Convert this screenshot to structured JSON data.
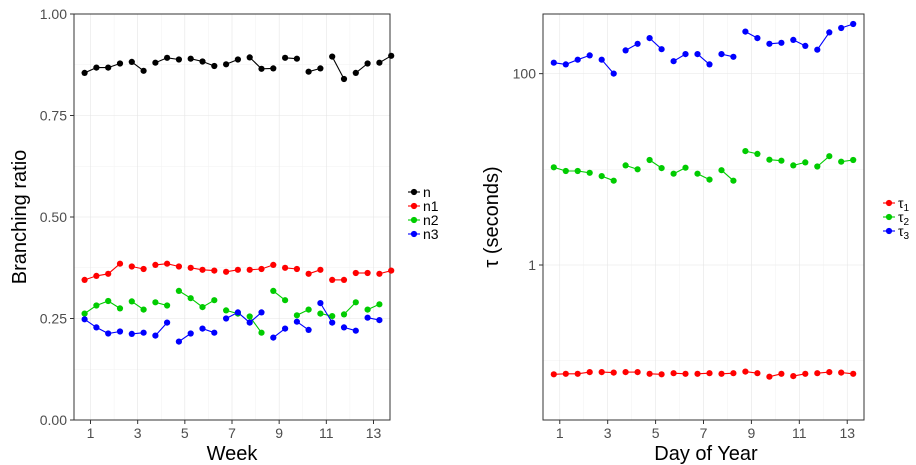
{
  "chart_data": [
    {
      "type": "line",
      "xlabel": "Week",
      "ylabel": "Branching ratio",
      "xlim": [
        0.3,
        13.7
      ],
      "ylim": [
        0,
        1
      ],
      "xticks": [
        1,
        3,
        5,
        7,
        9,
        11,
        13
      ],
      "xtick_labels": [
        "1",
        "3",
        "5",
        "7",
        "9",
        "11",
        "13"
      ],
      "yticks": [
        0,
        0.25,
        0.5,
        0.75,
        1
      ],
      "ytick_labels": [
        "0.00",
        "0.25",
        "0.50",
        "0.75",
        "1.00"
      ],
      "grid": true,
      "legend_position": "right",
      "series": [
        {
          "name": "n",
          "color": "#000000",
          "segments": [
            [
              [
                0.75,
                0.855
              ],
              [
                1.25,
                0.868
              ],
              [
                1.75,
                0.868
              ],
              [
                2.25,
                0.878
              ]
            ],
            [
              [
                2.75,
                0.882
              ],
              [
                3.25,
                0.86
              ]
            ],
            [
              [
                3.75,
                0.88
              ],
              [
                4.25,
                0.892
              ],
              [
                4.75,
                0.888
              ]
            ],
            [
              [
                5.25,
                0.89
              ],
              [
                5.75,
                0.883
              ],
              [
                6.25,
                0.872
              ]
            ],
            [
              [
                6.75,
                0.876
              ],
              [
                7.25,
                0.888
              ]
            ],
            [
              [
                7.75,
                0.893
              ],
              [
                8.25,
                0.865
              ],
              [
                8.75,
                0.866
              ]
            ],
            [
              [
                9.25,
                0.892
              ],
              [
                9.75,
                0.89
              ]
            ],
            [
              [
                10.25,
                0.858
              ],
              [
                10.75,
                0.866
              ]
            ],
            [
              [
                11.25,
                0.895
              ],
              [
                11.75,
                0.84
              ]
            ],
            [
              [
                12.25,
                0.855
              ],
              [
                12.75,
                0.878
              ]
            ],
            [
              [
                13.25,
                0.88
              ],
              [
                13.75,
                0.897
              ]
            ]
          ]
        },
        {
          "name": "n1",
          "color": "#ff0000",
          "segments": [
            [
              [
                0.75,
                0.345
              ],
              [
                1.25,
                0.355
              ],
              [
                1.75,
                0.36
              ],
              [
                2.25,
                0.385
              ]
            ],
            [
              [
                2.75,
                0.378
              ],
              [
                3.25,
                0.372
              ]
            ],
            [
              [
                3.75,
                0.382
              ],
              [
                4.25,
                0.385
              ],
              [
                4.75,
                0.378
              ]
            ],
            [
              [
                5.25,
                0.375
              ],
              [
                5.75,
                0.37
              ],
              [
                6.25,
                0.368
              ]
            ],
            [
              [
                6.75,
                0.365
              ],
              [
                7.25,
                0.37
              ]
            ],
            [
              [
                7.75,
                0.37
              ],
              [
                8.25,
                0.372
              ],
              [
                8.75,
                0.382
              ]
            ],
            [
              [
                9.25,
                0.375
              ],
              [
                9.75,
                0.372
              ]
            ],
            [
              [
                10.25,
                0.36
              ],
              [
                10.75,
                0.37
              ]
            ],
            [
              [
                11.25,
                0.345
              ],
              [
                11.75,
                0.345
              ]
            ],
            [
              [
                12.25,
                0.362
              ],
              [
                12.75,
                0.362
              ]
            ],
            [
              [
                13.25,
                0.36
              ],
              [
                13.75,
                0.368
              ]
            ]
          ]
        },
        {
          "name": "n2",
          "color": "#00cc00",
          "segments": [
            [
              [
                0.75,
                0.262
              ],
              [
                1.25,
                0.282
              ],
              [
                1.75,
                0.293
              ],
              [
                2.25,
                0.275
              ]
            ],
            [
              [
                2.75,
                0.292
              ],
              [
                3.25,
                0.272
              ]
            ],
            [
              [
                3.75,
                0.29
              ],
              [
                4.25,
                0.282
              ]
            ],
            [
              [
                4.75,
                0.318
              ],
              [
                5.25,
                0.3
              ],
              [
                5.75,
                0.278
              ],
              [
                6.25,
                0.295
              ]
            ],
            [
              [
                6.75,
                0.27
              ],
              [
                7.25,
                0.262
              ]
            ],
            [
              [
                7.75,
                0.255
              ],
              [
                8.25,
                0.215
              ]
            ],
            [
              [
                8.75,
                0.318
              ],
              [
                9.25,
                0.295
              ]
            ],
            [
              [
                9.75,
                0.258
              ],
              [
                10.25,
                0.272
              ]
            ],
            [
              [
                10.75,
                0.262
              ],
              [
                11.25,
                0.256
              ]
            ],
            [
              [
                11.75,
                0.26
              ],
              [
                12.25,
                0.29
              ]
            ],
            [
              [
                12.75,
                0.272
              ],
              [
                13.25,
                0.285
              ]
            ]
          ]
        },
        {
          "name": "n3",
          "color": "#0000ff",
          "segments": [
            [
              [
                0.75,
                0.248
              ],
              [
                1.25,
                0.228
              ],
              [
                1.75,
                0.213
              ],
              [
                2.25,
                0.218
              ]
            ],
            [
              [
                2.75,
                0.212
              ],
              [
                3.25,
                0.215
              ]
            ],
            [
              [
                3.75,
                0.208
              ],
              [
                4.25,
                0.24
              ]
            ],
            [
              [
                4.75,
                0.193
              ],
              [
                5.25,
                0.213
              ]
            ],
            [
              [
                5.75,
                0.225
              ],
              [
                6.25,
                0.215
              ]
            ],
            [
              [
                6.75,
                0.25
              ],
              [
                7.25,
                0.265
              ],
              [
                7.75,
                0.24
              ],
              [
                8.25,
                0.265
              ]
            ],
            [
              [
                8.75,
                0.203
              ],
              [
                9.25,
                0.225
              ]
            ],
            [
              [
                9.75,
                0.242
              ],
              [
                10.25,
                0.222
              ]
            ],
            [
              [
                10.75,
                0.288
              ],
              [
                11.25,
                0.24
              ]
            ],
            [
              [
                11.75,
                0.228
              ],
              [
                12.25,
                0.22
              ]
            ],
            [
              [
                12.75,
                0.252
              ],
              [
                13.25,
                0.246
              ]
            ]
          ]
        }
      ]
    },
    {
      "type": "line",
      "xlabel": "Day of Year",
      "ylabel": "τ (seconds)",
      "yscale": "log10",
      "xlim": [
        0.3,
        13.7
      ],
      "ylim": [
        0.024,
        420
      ],
      "xticks": [
        1,
        3,
        5,
        7,
        9,
        11,
        13
      ],
      "xtick_labels": [
        "1",
        "3",
        "5",
        "7",
        "9",
        "11",
        "13"
      ],
      "yticks": [
        1,
        100
      ],
      "ytick_labels": [
        "1",
        "100"
      ],
      "grid": true,
      "legend_position": "right",
      "series": [
        {
          "name": "τ1",
          "label_main": "τ",
          "label_sub": "1",
          "color": "#ff0000",
          "segments": [
            [
              [
                0.75,
                0.072
              ],
              [
                1.25,
                0.073
              ],
              [
                1.75,
                0.073
              ],
              [
                2.25,
                0.076
              ]
            ],
            [
              [
                2.75,
                0.076
              ],
              [
                3.25,
                0.075
              ]
            ],
            [
              [
                3.75,
                0.076
              ],
              [
                4.25,
                0.076
              ]
            ],
            [
              [
                4.75,
                0.073
              ],
              [
                5.25,
                0.072
              ]
            ],
            [
              [
                5.75,
                0.074
              ],
              [
                6.25,
                0.073
              ]
            ],
            [
              [
                6.75,
                0.073
              ],
              [
                7.25,
                0.074
              ]
            ],
            [
              [
                7.75,
                0.073
              ],
              [
                8.25,
                0.074
              ]
            ],
            [
              [
                8.75,
                0.077
              ],
              [
                9.25,
                0.074
              ]
            ],
            [
              [
                9.75,
                0.068
              ],
              [
                10.25,
                0.073
              ]
            ],
            [
              [
                10.75,
                0.069
              ],
              [
                11.25,
                0.073
              ]
            ],
            [
              [
                11.75,
                0.074
              ],
              [
                12.25,
                0.076
              ]
            ],
            [
              [
                12.75,
                0.075
              ],
              [
                13.25,
                0.073
              ]
            ]
          ]
        },
        {
          "name": "τ2",
          "label_main": "τ",
          "label_sub": "2",
          "color": "#00cc00",
          "segments": [
            [
              [
                0.75,
                10.5
              ],
              [
                1.25,
                9.6
              ],
              [
                1.75,
                9.6
              ],
              [
                2.25,
                9.2
              ]
            ],
            [
              [
                2.75,
                8.5
              ],
              [
                3.25,
                7.6
              ]
            ],
            [
              [
                3.75,
                11.0
              ],
              [
                4.25,
                10.0
              ]
            ],
            [
              [
                4.75,
                12.5
              ],
              [
                5.25,
                10.3
              ]
            ],
            [
              [
                5.75,
                9.0
              ],
              [
                6.25,
                10.4
              ]
            ],
            [
              [
                6.75,
                9.0
              ],
              [
                7.25,
                7.8
              ]
            ],
            [
              [
                7.75,
                9.8
              ],
              [
                8.25,
                7.6
              ]
            ],
            [
              [
                8.75,
                15.5
              ],
              [
                9.25,
                14.5
              ]
            ],
            [
              [
                9.75,
                12.6
              ],
              [
                10.25,
                12.3
              ]
            ],
            [
              [
                10.75,
                11.0
              ],
              [
                11.25,
                11.8
              ]
            ],
            [
              [
                11.75,
                10.7
              ],
              [
                12.25,
                13.7
              ]
            ],
            [
              [
                12.75,
                12.0
              ],
              [
                13.25,
                12.5
              ]
            ]
          ]
        },
        {
          "name": "τ3",
          "label_main": "τ",
          "label_sub": "3",
          "color": "#0000ff",
          "segments": [
            [
              [
                0.75,
                130
              ],
              [
                1.25,
                125
              ],
              [
                1.75,
                140
              ],
              [
                2.25,
                155
              ]
            ],
            [
              [
                2.75,
                140
              ],
              [
                3.25,
                100
              ]
            ],
            [
              [
                3.75,
                175
              ],
              [
                4.25,
                205
              ]
            ],
            [
              [
                4.75,
                235
              ],
              [
                5.25,
                180
              ]
            ],
            [
              [
                5.75,
                135
              ],
              [
                6.25,
                160
              ]
            ],
            [
              [
                6.75,
                160
              ],
              [
                7.25,
                125
              ]
            ],
            [
              [
                7.75,
                160
              ],
              [
                8.25,
                150
              ]
            ],
            [
              [
                8.75,
                275
              ],
              [
                9.25,
                235
              ]
            ],
            [
              [
                9.75,
                205
              ],
              [
                10.25,
                210
              ]
            ],
            [
              [
                10.75,
                225
              ],
              [
                11.25,
                195
              ]
            ],
            [
              [
                11.75,
                178
              ],
              [
                12.25,
                270
              ]
            ],
            [
              [
                12.75,
                300
              ],
              [
                13.25,
                330
              ]
            ]
          ]
        }
      ]
    }
  ]
}
